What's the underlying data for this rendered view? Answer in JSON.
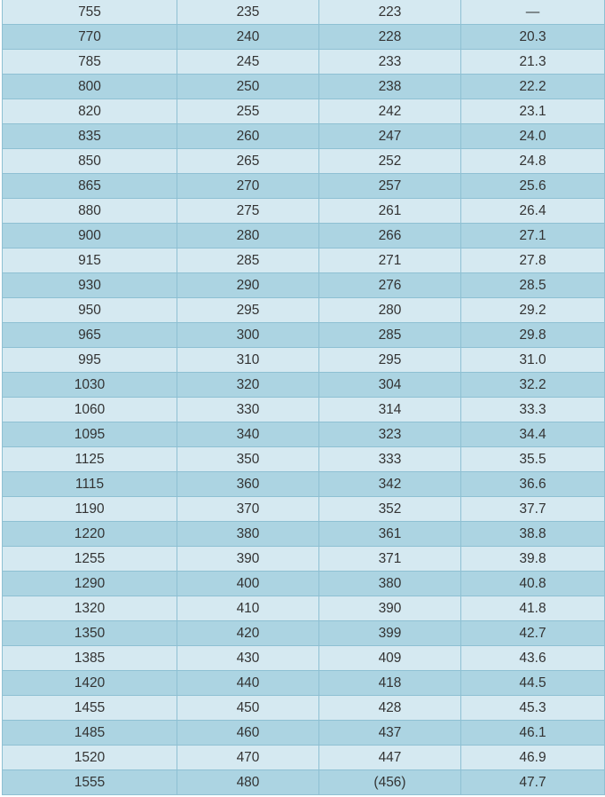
{
  "table": {
    "rows": [
      [
        "755",
        "235",
        "223",
        "—"
      ],
      [
        "770",
        "240",
        "228",
        "20.3"
      ],
      [
        "785",
        "245",
        "233",
        "21.3"
      ],
      [
        "800",
        "250",
        "238",
        "22.2"
      ],
      [
        "820",
        "255",
        "242",
        "23.1"
      ],
      [
        "835",
        "260",
        "247",
        "24.0"
      ],
      [
        "850",
        "265",
        "252",
        "24.8"
      ],
      [
        "865",
        "270",
        "257",
        "25.6"
      ],
      [
        "880",
        "275",
        "261",
        "26.4"
      ],
      [
        "900",
        "280",
        "266",
        "27.1"
      ],
      [
        "915",
        "285",
        "271",
        "27.8"
      ],
      [
        "930",
        "290",
        "276",
        "28.5"
      ],
      [
        "950",
        "295",
        "280",
        "29.2"
      ],
      [
        "965",
        "300",
        "285",
        "29.8"
      ],
      [
        "995",
        "310",
        "295",
        "31.0"
      ],
      [
        "1030",
        "320",
        "304",
        "32.2"
      ],
      [
        "1060",
        "330",
        "314",
        "33.3"
      ],
      [
        "1095",
        "340",
        "323",
        "34.4"
      ],
      [
        "1125",
        "350",
        "333",
        "35.5"
      ],
      [
        "1115",
        "360",
        "342",
        "36.6"
      ],
      [
        "1190",
        "370",
        "352",
        "37.7"
      ],
      [
        "1220",
        "380",
        "361",
        "38.8"
      ],
      [
        "1255",
        "390",
        "371",
        "39.8"
      ],
      [
        "1290",
        "400",
        "380",
        "40.8"
      ],
      [
        "1320",
        "410",
        "390",
        "41.8"
      ],
      [
        "1350",
        "420",
        "399",
        "42.7"
      ],
      [
        "1385",
        "430",
        "409",
        "43.6"
      ],
      [
        "1420",
        "440",
        "418",
        "44.5"
      ],
      [
        "1455",
        "450",
        "428",
        "45.3"
      ],
      [
        "1485",
        "460",
        "437",
        "46.1"
      ],
      [
        "1520",
        "470",
        "447",
        "46.9"
      ],
      [
        "1555",
        "480",
        "(456)",
        "47.7"
      ]
    ]
  },
  "colors": {
    "row_light": "#d5e9f1",
    "row_dark": "#acd4e2",
    "border": "#8ec0d3",
    "text": "#333333"
  }
}
